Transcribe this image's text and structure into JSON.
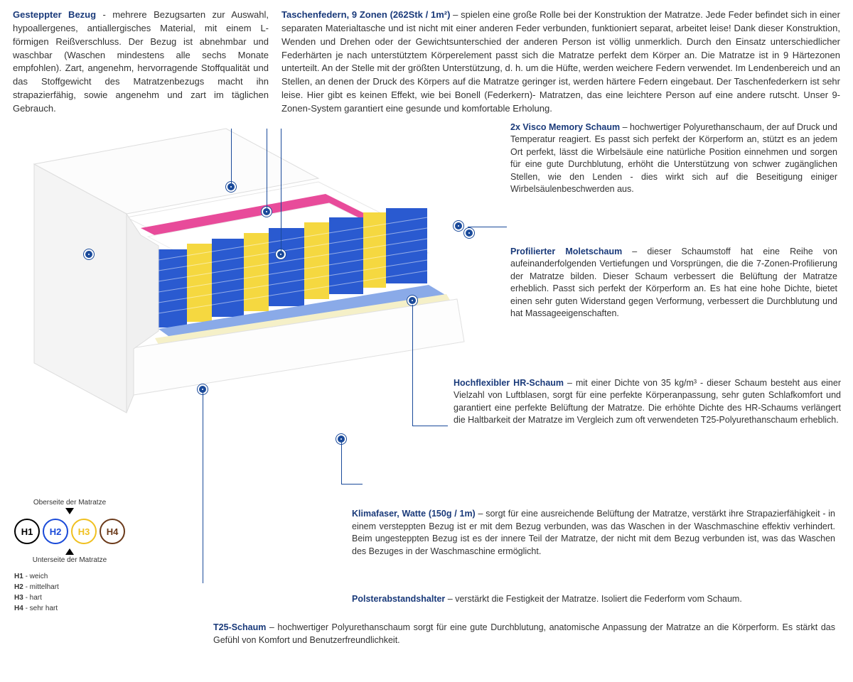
{
  "colors": {
    "accent": "#1a3a7a",
    "marker": "#1a4a9a",
    "h1": "#000000",
    "h2": "#1a4ad8",
    "h3": "#f0c020",
    "h4": "#6b3a1a",
    "pink": "#e84b9a",
    "blue": "#2a5ad0",
    "yellow": "#f5d840",
    "lightblue": "#8aaae8",
    "cream": "#f5f0c8",
    "white": "#f8f8f8"
  },
  "top_left": {
    "title": "Gesteppter Bezug",
    "body": " - mehrere Bezugsarten zur Auswahl, hypoallergenes, antiallergisches Material, mit einem L-förmigen Reißverschluss. Der Bezug ist abnehmbar und waschbar (Waschen mindestens alle sechs Monate empfohlen). Zart, angenehm, hervorragende Stoffqualität und das Stoffgewicht des Matratzenbezugs macht ihn strapazierfähig, sowie angenehm und zart im täglichen Gebrauch."
  },
  "top_right": {
    "title": "Taschenfedern, 9 Zonen (262Stk / 1m²)",
    "body": " – spielen eine große Rolle bei der Konstruktion der Matratze. Jede Feder befindet sich in einer separaten Materialtasche und ist nicht mit einer anderen Feder verbunden, funktioniert separat, arbeitet leise! Dank dieser Konstruktion, Wenden und Drehen oder der Gewichtsunterschied der anderen Person ist völlig unmerklich. Durch den Einsatz unterschiedlicher Federhärten je nach unterstütztem Körperelement passt sich die Matratze perfekt dem Körper an. Die Matratze ist in 9 Härtezonen unterteilt. An der Stelle mit der größten Unterstützung, d. h. um die Hüfte, werden weichere Federn verwendet. Im Lendenbereich und an Stellen, an denen der Druck des Körpers auf die Matratze geringer ist, werden härtere Federn eingebaut. Der Taschenfederkern ist sehr leise. Hier gibt es keinen Effekt, wie bei Bonell (Federkern)- Matratzen, das eine leichtere Person auf eine andere rutscht. Unser 9-Zonen-System garantiert eine gesunde und komfortable Erholung."
  },
  "callouts": {
    "visco": {
      "title": "2x Visco Memory Schaum",
      "body": " – hochwertiger Polyurethanschaum, der auf Druck und Temperatur reagiert. Es passt sich perfekt der Körperform an, stützt es an jedem Ort perfekt, lässt die Wirbelsäule eine natürliche Position einnehmen und sorgen für eine gute Durchblutung, erhöht die Unterstützung von schwer zugänglichen Stellen, wie den Lenden - dies wirkt sich auf die Beseitigung einiger Wirbelsäulenbeschwerden aus."
    },
    "molet": {
      "title": "Profilierter Moletschaum",
      "body": " – dieser Schaumstoff hat eine Reihe von aufeinanderfolgenden Vertiefungen und Vorsprüngen, die die 7-Zonen-Profilierung der Matratze bilden. Dieser Schaum verbessert die Belüftung der Matratze erheblich. Passt sich perfekt der Körperform an. Es hat eine hohe Dichte, bietet einen sehr guten Widerstand gegen Verformung, verbessert die Durchblutung und hat Massageeigenschaften."
    },
    "hr": {
      "title": "Hochflexibler HR-Schaum",
      "body": " – mit einer Dichte von 35 kg/m³ - dieser Schaum besteht aus einer Vielzahl von Luftblasen, sorgt für eine perfekte Körperanpassung, sehr guten Schlafkomfort und garantiert eine perfekte Belüftung der Matratze. Die erhöhte Dichte des HR-Schaums verlängert die Haltbarkeit der Matratze im Vergleich zum oft verwendeten T25-Polyurethanschaum erheblich."
    },
    "klima": {
      "title": "Klimafaser, Watte (150g / 1m)",
      "body": " – sorgt für eine ausreichende Belüftung der Matratze, verstärkt ihre Strapazierfähigkeit - in einem versteppten Bezug ist er mit dem Bezug verbunden, was das Waschen in der Waschmaschine effektiv verhindert. Beim ungesteppten Bezug ist es der innere Teil der Matratze, der nicht mit dem Bezug verbunden ist, was das Waschen des Bezuges in der Waschmaschine ermöglicht."
    },
    "polster": {
      "title": "Polsterabstandshalter",
      "body": " – verstärkt die Festigkeit der Matratze. Isoliert die Federform vom Schaum."
    },
    "t25": {
      "title": "T25-Schaum",
      "body": " – hochwertiger Polyurethanschaum sorgt für eine gute Durchblutung, anatomische Anpassung der Matratze an die Körperform. Es stärkt das Gefühl von Komfort und Benutzerfreundlichkeit."
    }
  },
  "legend": {
    "top_label": "Oberseite der Matratze",
    "bottom_label": "Unterseite der Matratze",
    "items": [
      {
        "code": "H1",
        "label": "weich",
        "color": "#000000"
      },
      {
        "code": "H2",
        "label": "mittelhart",
        "color": "#1a4ad8"
      },
      {
        "code": "H3",
        "label": "hart",
        "color": "#f0c020"
      },
      {
        "code": "H4",
        "label": "sehr hart",
        "color": "#6b3a1a"
      }
    ]
  },
  "mattress_svg": {
    "layers": [
      {
        "name": "cover-top",
        "color": "#f8f8f8"
      },
      {
        "name": "pink-foam",
        "color": "#e84b9a"
      },
      {
        "name": "white-foam",
        "color": "#ffffff"
      },
      {
        "name": "springs",
        "colors": [
          "#2a5ad0",
          "#f5d840"
        ]
      },
      {
        "name": "lightblue-foam",
        "color": "#8aaae8"
      },
      {
        "name": "cream-foam",
        "color": "#f5f0c8"
      },
      {
        "name": "cover-bottom",
        "color": "#f8f8f8"
      }
    ]
  }
}
